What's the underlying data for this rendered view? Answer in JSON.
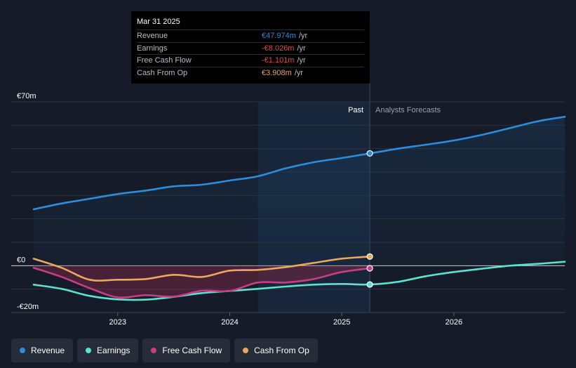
{
  "chart_data": {
    "type": "line",
    "x_unit": "year",
    "xlim": [
      2022.25,
      2026.99
    ],
    "ylim": [
      -20,
      70
    ],
    "y_ticks": [
      {
        "value": 70,
        "label": "€70m"
      },
      {
        "value": 0,
        "label": "€0"
      },
      {
        "value": -20,
        "label": "-€20m"
      }
    ],
    "x_ticks": [
      {
        "value": 2023,
        "label": "2023"
      },
      {
        "value": 2024,
        "label": "2024"
      },
      {
        "value": 2025,
        "label": "2025"
      },
      {
        "value": 2026,
        "label": "2026"
      }
    ],
    "highlight_start": 2024.25,
    "divider_x": 2025.25,
    "past_label": "Past",
    "forecast_label": "Analysts Forecasts",
    "series": [
      {
        "name": "Revenue",
        "color": "#2d8ddb",
        "fill": true,
        "points": [
          [
            2022.25,
            24.1
          ],
          [
            2022.5,
            26.6
          ],
          [
            2022.75,
            28.6
          ],
          [
            2023.0,
            30.6
          ],
          [
            2023.25,
            32.1
          ],
          [
            2023.5,
            33.9
          ],
          [
            2023.75,
            34.6
          ],
          [
            2024.0,
            36.4
          ],
          [
            2024.25,
            38.2
          ],
          [
            2024.5,
            41.6
          ],
          [
            2024.75,
            44.2
          ],
          [
            2025.0,
            46.0
          ],
          [
            2025.25,
            47.974
          ],
          [
            2025.5,
            50.0
          ],
          [
            2025.75,
            51.7
          ],
          [
            2026.0,
            53.5
          ],
          [
            2026.25,
            55.9
          ],
          [
            2026.5,
            58.8
          ],
          [
            2026.75,
            61.7
          ],
          [
            2026.99,
            63.6
          ]
        ]
      },
      {
        "name": "Earnings",
        "color": "#5ce2d0",
        "fill": false,
        "points": [
          [
            2022.25,
            -8.1
          ],
          [
            2022.5,
            -9.9
          ],
          [
            2022.75,
            -12.9
          ],
          [
            2023.0,
            -14.4
          ],
          [
            2023.25,
            -14.5
          ],
          [
            2023.5,
            -13.3
          ],
          [
            2023.75,
            -11.7
          ],
          [
            2024.0,
            -10.8
          ],
          [
            2024.25,
            -9.9
          ],
          [
            2024.5,
            -8.9
          ],
          [
            2024.75,
            -8.1
          ],
          [
            2025.0,
            -7.8
          ],
          [
            2025.25,
            -8.026
          ],
          [
            2025.5,
            -6.9
          ],
          [
            2025.75,
            -4.5
          ],
          [
            2026.0,
            -2.7
          ],
          [
            2026.25,
            -1.3
          ],
          [
            2026.5,
            0.0
          ],
          [
            2026.75,
            0.8
          ],
          [
            2026.99,
            1.7
          ]
        ]
      },
      {
        "name": "Free Cash Flow",
        "color": "#c73e85",
        "fill": true,
        "points": [
          [
            2022.25,
            -0.9
          ],
          [
            2022.5,
            -4.8
          ],
          [
            2022.75,
            -9.6
          ],
          [
            2023.0,
            -13.5
          ],
          [
            2023.25,
            -12.6
          ],
          [
            2023.5,
            -13.2
          ],
          [
            2023.75,
            -10.7
          ],
          [
            2024.0,
            -10.8
          ],
          [
            2024.25,
            -7.2
          ],
          [
            2024.5,
            -7.2
          ],
          [
            2024.75,
            -5.7
          ],
          [
            2025.0,
            -2.7
          ],
          [
            2025.25,
            -1.101
          ]
        ]
      },
      {
        "name": "Cash From Op",
        "color": "#e9a85d",
        "fill": false,
        "points": [
          [
            2022.25,
            3.0
          ],
          [
            2022.5,
            -0.9
          ],
          [
            2022.75,
            -6.0
          ],
          [
            2023.0,
            -6.0
          ],
          [
            2023.25,
            -5.7
          ],
          [
            2023.5,
            -3.9
          ],
          [
            2023.75,
            -4.8
          ],
          [
            2024.0,
            -2.1
          ],
          [
            2024.25,
            -1.8
          ],
          [
            2024.5,
            -0.6
          ],
          [
            2024.75,
            1.2
          ],
          [
            2025.0,
            3.0
          ],
          [
            2025.25,
            3.908
          ]
        ]
      }
    ]
  },
  "tooltip": {
    "date": "Mar 31 2025",
    "rows": [
      {
        "label": "Revenue",
        "value": "€47.974m",
        "unit": "/yr",
        "color": "#2d8ddb"
      },
      {
        "label": "Earnings",
        "value": "-€8.026m",
        "unit": "/yr",
        "color": "#e8474d"
      },
      {
        "label": "Free Cash Flow",
        "value": "-€1.101m",
        "unit": "/yr",
        "color": "#e8474d"
      },
      {
        "label": "Cash From Op",
        "value": "€3.908m",
        "unit": "/yr",
        "color": "#e9a85d"
      }
    ]
  },
  "legend": [
    {
      "label": "Revenue",
      "color": "#2d8ddb"
    },
    {
      "label": "Earnings",
      "color": "#5ce2d0"
    },
    {
      "label": "Free Cash Flow",
      "color": "#c73e85"
    },
    {
      "label": "Cash From Op",
      "color": "#e9a85d"
    }
  ]
}
